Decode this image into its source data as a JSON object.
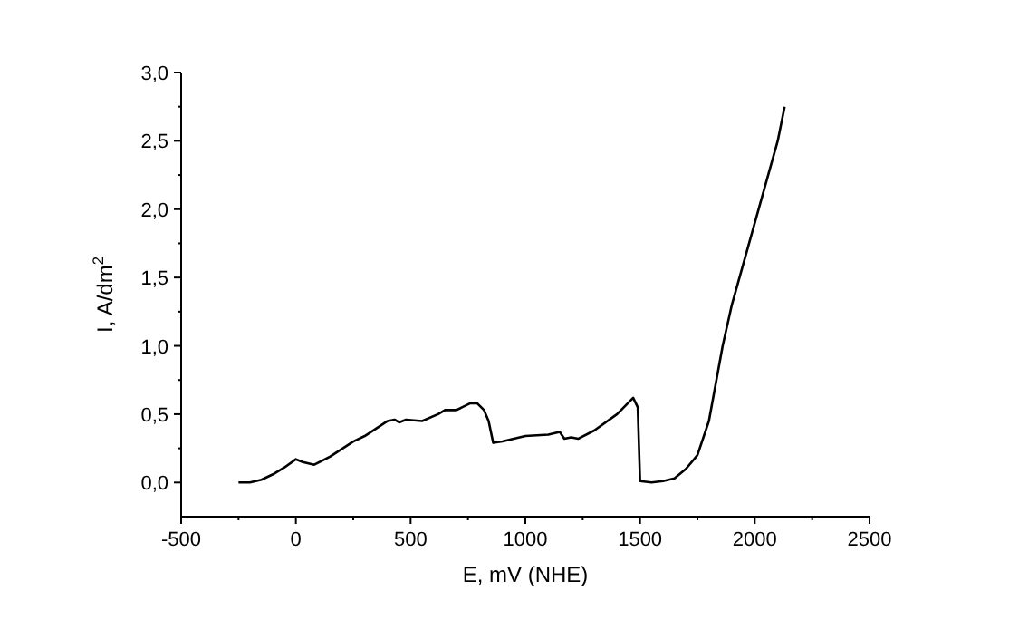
{
  "chart_data": {
    "type": "line",
    "xlabel": "E, mV (NHE)",
    "ylabel": "I, A/dm$^{2}$",
    "xlim": [
      -500,
      2500
    ],
    "xticks": [
      -500,
      0,
      500,
      1000,
      1500,
      2000,
      2500
    ],
    "ylim": [
      -0.25,
      3.0
    ],
    "yticks": [
      {
        "value": 0,
        "label": "0,0"
      },
      {
        "value": 0.5,
        "label": "0,5"
      },
      {
        "value": 1,
        "label": "1,0"
      },
      {
        "value": 1.5,
        "label": "1,5"
      },
      {
        "value": 2,
        "label": "2,0"
      },
      {
        "value": 2.5,
        "label": "2,5"
      },
      {
        "value": 3,
        "label": "3,0"
      }
    ],
    "grid": false,
    "marker": "none",
    "line_style": "solid",
    "series": [
      {
        "color": "#000000",
        "x": [
          -250,
          -200,
          -150,
          -100,
          -50,
          0,
          30,
          80,
          150,
          250,
          300,
          400,
          430,
          450,
          480,
          550,
          620,
          650,
          700,
          760,
          790,
          820,
          840,
          860,
          900,
          1000,
          1100,
          1150,
          1170,
          1200,
          1230,
          1300,
          1400,
          1470,
          1490,
          1500,
          1550,
          1600,
          1650,
          1700,
          1750,
          1800,
          1860,
          1900,
          1950,
          2000,
          2050,
          2100,
          2130
        ],
        "values": [
          0,
          0,
          0.02,
          0.06,
          0.11,
          0.17,
          0.15,
          0.13,
          0.19,
          0.3,
          0.34,
          0.45,
          0.46,
          0.44,
          0.46,
          0.45,
          0.5,
          0.53,
          0.53,
          0.58,
          0.58,
          0.53,
          0.45,
          0.29,
          0.3,
          0.34,
          0.35,
          0.37,
          0.32,
          0.33,
          0.32,
          0.38,
          0.5,
          0.62,
          0.55,
          0.01,
          0,
          0.01,
          0.03,
          0.1,
          0.2,
          0.45,
          1.0,
          1.3,
          1.6,
          1.9,
          2.2,
          2.5,
          2.75
        ]
      }
    ]
  }
}
